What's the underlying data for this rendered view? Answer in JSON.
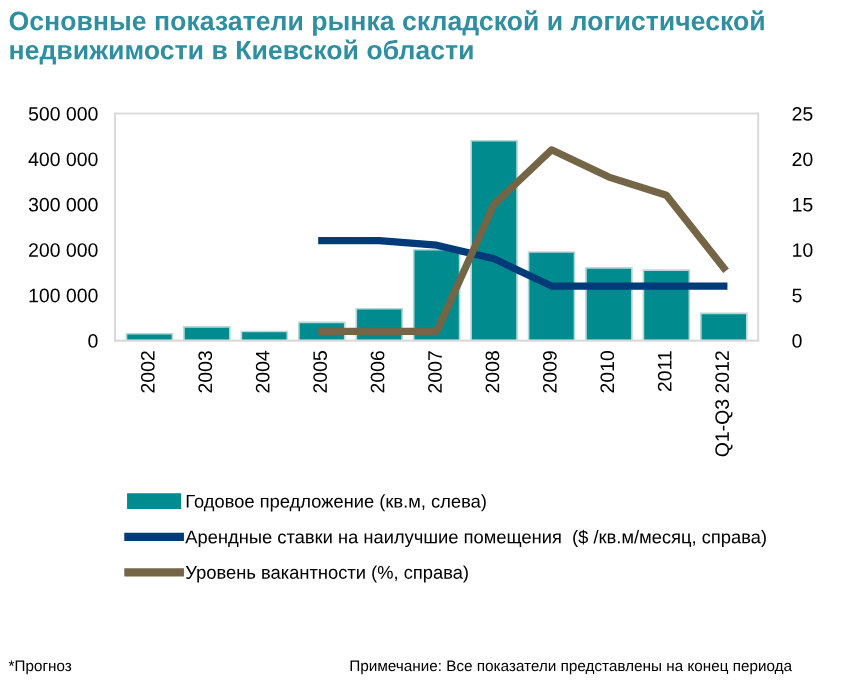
{
  "chart_data": {
    "type": "bar",
    "title": "Основные показатели рынка складской и логистической\nнедвижимости в Киевской области",
    "categories": [
      "2002",
      "2003",
      "2004",
      "2005",
      "2006",
      "2007",
      "2008",
      "2009",
      "2010",
      "2011",
      "Q1-Q3 2012"
    ],
    "series": [
      {
        "name": "Годовое предложение (кв.м, слева)",
        "color": "#008b8f",
        "values": [
          15000,
          30000,
          20000,
          40000,
          70000,
          200000,
          440000,
          195000,
          160000,
          155000,
          60000
        ]
      },
      {
        "name": "Арендные ставки на наилучшие помещения  ($ /кв.м/месяц, справа)",
        "type": "line",
        "axis": "y2",
        "color": "#003b79",
        "values": [
          null,
          null,
          null,
          11,
          11,
          10.5,
          9,
          6,
          6,
          6,
          6
        ]
      },
      {
        "name": "Уровень вакантности (%, справа)",
        "type": "line",
        "axis": "y2",
        "color": "#736545",
        "values": [
          null,
          null,
          null,
          1,
          1,
          1,
          15,
          21,
          18,
          16,
          8
        ]
      }
    ],
    "ylim": [
      0,
      500000
    ],
    "yticks": [
      0,
      {
        "value": 100000,
        "label": "100 000"
      },
      {
        "value": 200000,
        "label": "200 000"
      },
      {
        "value": 300000,
        "label": "300 000"
      },
      {
        "value": 400000,
        "label": "400 000"
      },
      {
        "value": 500000,
        "label": "500 000"
      }
    ],
    "y2lim": [
      0,
      25
    ],
    "y2ticks": [
      0,
      5,
      10,
      15,
      20,
      25
    ],
    "grid": false,
    "legend": "bottom",
    "marker": "none",
    "line_style": "solid",
    "annotations": [
      "*Прогноз",
      "Примечание: Все показатели представлены на конец периода"
    ]
  }
}
